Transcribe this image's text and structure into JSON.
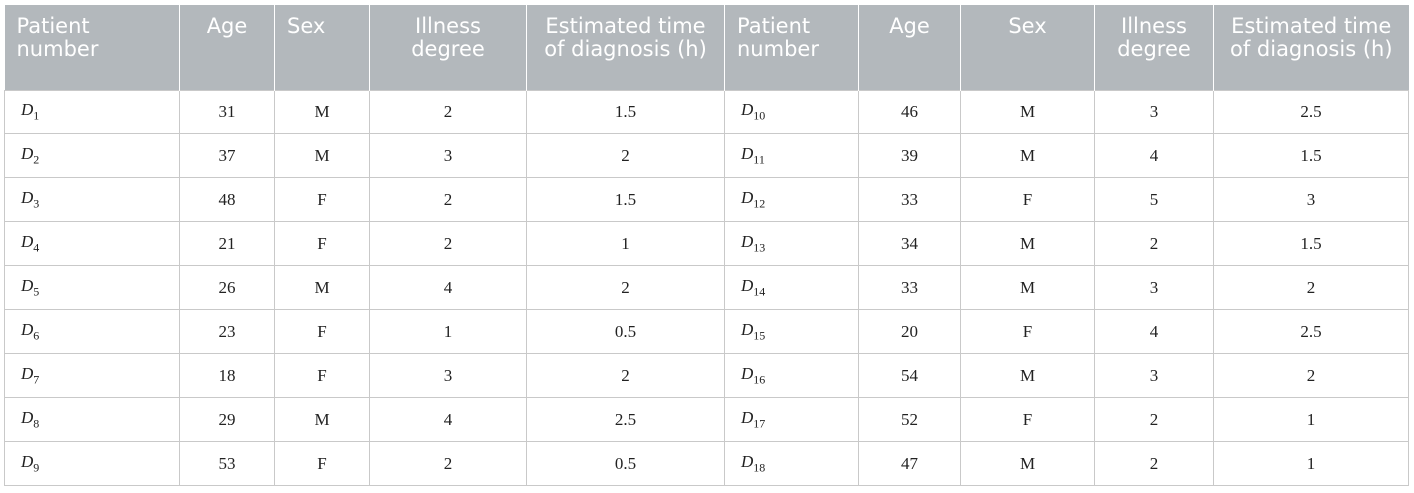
{
  "table": {
    "headers": [
      "Patient number",
      "Age",
      "Sex",
      "Illness degree",
      "Estimated time of diagnosis (h)",
      "Patient number",
      "Age",
      "Sex",
      "Illness degree",
      "Estimated time of diagnosis (h)"
    ],
    "rows": [
      {
        "left": {
          "id_letter": "D",
          "id_sub": "1",
          "age": "31",
          "sex": "M",
          "degree": "2",
          "time": "1.5"
        },
        "right": {
          "id_letter": "D",
          "id_sub": "10",
          "age": "46",
          "sex": "M",
          "degree": "3",
          "time": "2.5"
        }
      },
      {
        "left": {
          "id_letter": "D",
          "id_sub": "2",
          "age": "37",
          "sex": "M",
          "degree": "3",
          "time": "2"
        },
        "right": {
          "id_letter": "D",
          "id_sub": "11",
          "age": "39",
          "sex": "M",
          "degree": "4",
          "time": "1.5"
        }
      },
      {
        "left": {
          "id_letter": "D",
          "id_sub": "3",
          "age": "48",
          "sex": "F",
          "degree": "2",
          "time": "1.5"
        },
        "right": {
          "id_letter": "D",
          "id_sub": "12",
          "age": "33",
          "sex": "F",
          "degree": "5",
          "time": "3"
        }
      },
      {
        "left": {
          "id_letter": "D",
          "id_sub": "4",
          "age": "21",
          "sex": "F",
          "degree": "2",
          "time": "1"
        },
        "right": {
          "id_letter": "D",
          "id_sub": "13",
          "age": "34",
          "sex": "M",
          "degree": "2",
          "time": "1.5"
        }
      },
      {
        "left": {
          "id_letter": "D",
          "id_sub": "5",
          "age": "26",
          "sex": "M",
          "degree": "4",
          "time": "2"
        },
        "right": {
          "id_letter": "D",
          "id_sub": "14",
          "age": "33",
          "sex": "M",
          "degree": "3",
          "time": "2"
        }
      },
      {
        "left": {
          "id_letter": "D",
          "id_sub": "6",
          "age": "23",
          "sex": "F",
          "degree": "1",
          "time": "0.5"
        },
        "right": {
          "id_letter": "D",
          "id_sub": "15",
          "age": "20",
          "sex": "F",
          "degree": "4",
          "time": "2.5"
        }
      },
      {
        "left": {
          "id_letter": "D",
          "id_sub": "7",
          "age": "18",
          "sex": "F",
          "degree": "3",
          "time": "2"
        },
        "right": {
          "id_letter": "D",
          "id_sub": "16",
          "age": "54",
          "sex": "M",
          "degree": "3",
          "time": "2"
        }
      },
      {
        "left": {
          "id_letter": "D",
          "id_sub": "8",
          "age": "29",
          "sex": "M",
          "degree": "4",
          "time": "2.5"
        },
        "right": {
          "id_letter": "D",
          "id_sub": "17",
          "age": "52",
          "sex": "F",
          "degree": "2",
          "time": "1"
        }
      },
      {
        "left": {
          "id_letter": "D",
          "id_sub": "9",
          "age": "53",
          "sex": "F",
          "degree": "2",
          "time": "0.5"
        },
        "right": {
          "id_letter": "D",
          "id_sub": "18",
          "age": "47",
          "sex": "M",
          "degree": "2",
          "time": "1"
        }
      }
    ]
  },
  "colors": {
    "header_background": "#b3b8bc",
    "header_text": "#ffffff",
    "grid_line": "#c9c9c9",
    "cell_text": "#222222"
  }
}
